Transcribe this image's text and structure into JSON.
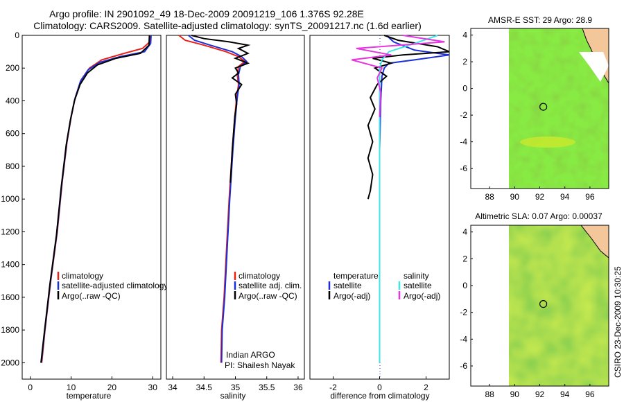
{
  "header": {
    "line1": "Argo profile: IN 2901092_49 18-Dec-2009 20091219_106 1.376S 92.28E",
    "line2": "Climatology: CARS2009. Satellite-adjusted climatology: synTS_20091217.nc (1.6d earlier)"
  },
  "footer_stamp": "CSIRO 23-Dec-2009 10:30:25",
  "colors": {
    "climatology": "#e8211b",
    "satellite": "#1c2fd6",
    "argo": "#000000",
    "sal_sat": "#3ee6e6",
    "sal_argo": "#e636e0",
    "map_green": "#6cd42a",
    "coast": "#f4c79a"
  },
  "chart_data": [
    {
      "id": "temperature",
      "type": "line",
      "xlabel": "temperature",
      "ylabel": "",
      "xlim": [
        -2,
        32
      ],
      "ylim": [
        2100,
        0
      ],
      "xticks": [
        0,
        10,
        20,
        30
      ],
      "yticks": [
        0,
        200,
        400,
        600,
        800,
        1000,
        1200,
        1400,
        1600,
        1800,
        2000
      ],
      "legend": [
        "climatology",
        "satellite-adjusted climatology",
        "Argo(..raw -QC)"
      ],
      "series": [
        {
          "name": "climatology",
          "color": "red",
          "points": [
            [
              29.4,
              0
            ],
            [
              29.3,
              40
            ],
            [
              27.5,
              80
            ],
            [
              23,
              110
            ],
            [
              17.5,
              150
            ],
            [
              14.5,
              200
            ],
            [
              12.5,
              270
            ],
            [
              11,
              380
            ],
            [
              10,
              500
            ],
            [
              9,
              650
            ],
            [
              7.8,
              900
            ],
            [
              6.6,
              1200
            ],
            [
              5,
              1500
            ],
            [
              3.6,
              1800
            ],
            [
              2.8,
              2000
            ]
          ]
        },
        {
          "name": "satellite-adjusted climatology",
          "color": "blue",
          "points": [
            [
              29.6,
              0
            ],
            [
              29.5,
              50
            ],
            [
              28,
              100
            ],
            [
              22,
              130
            ],
            [
              17,
              165
            ],
            [
              14.2,
              210
            ],
            [
              12.3,
              280
            ],
            [
              10.9,
              390
            ],
            [
              9.9,
              510
            ],
            [
              8.9,
              660
            ],
            [
              7.7,
              910
            ],
            [
              6.5,
              1210
            ],
            [
              4.9,
              1510
            ],
            [
              3.5,
              1810
            ],
            [
              2.7,
              2000
            ]
          ]
        },
        {
          "name": "Argo(..raw -QC)",
          "color": "black",
          "points": [
            [
              29.2,
              0
            ],
            [
              29.1,
              60
            ],
            [
              27,
              110
            ],
            [
              21,
              140
            ],
            [
              16.5,
              180
            ],
            [
              14,
              230
            ],
            [
              12.2,
              300
            ],
            [
              10.8,
              400
            ],
            [
              9.8,
              520
            ],
            [
              8.8,
              670
            ],
            [
              7.6,
              920
            ],
            [
              6.4,
              1220
            ],
            [
              4.8,
              1520
            ],
            [
              3.4,
              1820
            ],
            [
              2.6,
              2000
            ]
          ]
        }
      ]
    },
    {
      "id": "salinity",
      "type": "line",
      "xlabel": "salinity",
      "ylabel": "",
      "xlim": [
        33.9,
        36.1
      ],
      "ylim": [
        2100,
        0
      ],
      "xticks": [
        34,
        34.5,
        35,
        35.5,
        36
      ],
      "legend": [
        "climatology",
        "satellite adj. clim.",
        "Argo(..raw -QC)"
      ],
      "annotation": [
        "Indian ARGO",
        "PI: Shailesh Nayak"
      ],
      "series": [
        {
          "name": "climatology",
          "color": "red",
          "points": [
            [
              34.1,
              0
            ],
            [
              34.2,
              30
            ],
            [
              34.5,
              60
            ],
            [
              34.85,
              100
            ],
            [
              35.05,
              130
            ],
            [
              35.15,
              160
            ],
            [
              35.05,
              190
            ],
            [
              35.03,
              240
            ],
            [
              35.05,
              300
            ],
            [
              35.02,
              380
            ],
            [
              34.99,
              500
            ],
            [
              34.95,
              700
            ],
            [
              34.9,
              1000
            ],
            [
              34.86,
              1300
            ],
            [
              34.82,
              1600
            ],
            [
              34.78,
              1800
            ],
            [
              34.77,
              2000
            ]
          ]
        },
        {
          "name": "satellite adj. clim.",
          "color": "blue",
          "points": [
            [
              34.25,
              0
            ],
            [
              34.35,
              30
            ],
            [
              34.6,
              60
            ],
            [
              34.95,
              100
            ],
            [
              35.1,
              130
            ],
            [
              35.18,
              160
            ],
            [
              35.08,
              190
            ],
            [
              35.05,
              240
            ],
            [
              35.06,
              300
            ],
            [
              35.03,
              380
            ],
            [
              35.0,
              500
            ],
            [
              34.96,
              700
            ],
            [
              34.91,
              1000
            ],
            [
              34.87,
              1300
            ],
            [
              34.83,
              1600
            ],
            [
              34.79,
              1800
            ],
            [
              34.78,
              2000
            ]
          ]
        },
        {
          "name": "Argo(..raw -QC)",
          "color": "black",
          "points": [
            [
              34.3,
              0
            ],
            [
              34.5,
              20
            ],
            [
              34.9,
              40
            ],
            [
              35.2,
              60
            ],
            [
              35.05,
              80
            ],
            [
              35.2,
              110
            ],
            [
              35.0,
              140
            ],
            [
              35.2,
              170
            ],
            [
              35.0,
              200
            ],
            [
              35.05,
              230
            ],
            [
              34.95,
              260
            ],
            [
              35.1,
              300
            ],
            [
              35.0,
              360
            ],
            [
              35.02,
              420
            ],
            [
              34.99,
              500
            ],
            [
              34.96,
              650
            ],
            [
              34.95,
              700
            ],
            [
              34.92,
              900
            ]
          ]
        }
      ]
    },
    {
      "id": "difference",
      "type": "line",
      "xlabel": "difference from climatology",
      "ylabel": "",
      "xlim": [
        -3,
        3
      ],
      "ylim": [
        2100,
        0
      ],
      "xticks": [
        -2,
        0,
        2
      ],
      "legend_temp_title": "temperature",
      "legend_sal_title": "salinity",
      "legend_temp": [
        "satellite",
        "Argo(-adj)"
      ],
      "legend_sal": [
        "satellite",
        "Argo(-adj)"
      ],
      "series": [
        {
          "name": "temperature satellite",
          "color": "blue",
          "points": [
            [
              0.3,
              0
            ],
            [
              0.6,
              40
            ],
            [
              1.5,
              90
            ],
            [
              3.0,
              120
            ],
            [
              1.5,
              150
            ],
            [
              0.4,
              170
            ],
            [
              0.2,
              200
            ],
            [
              0.1,
              250
            ],
            [
              0.05,
              400
            ],
            [
              0,
              700
            ],
            [
              0,
              1000
            ],
            [
              0,
              1400
            ],
            [
              0,
              2000
            ]
          ]
        },
        {
          "name": "temperature Argo(-adj)",
          "color": "black",
          "points": [
            [
              0.2,
              0
            ],
            [
              0.8,
              30
            ],
            [
              2.5,
              70
            ],
            [
              3.0,
              100
            ],
            [
              1.0,
              120
            ],
            [
              -0.3,
              140
            ],
            [
              0.5,
              170
            ],
            [
              -0.2,
              200
            ],
            [
              0.3,
              250
            ],
            [
              -0.1,
              300
            ],
            [
              -0.4,
              380
            ],
            [
              -0.2,
              450
            ],
            [
              -0.5,
              550
            ],
            [
              -0.3,
              650
            ],
            [
              -0.5,
              750
            ],
            [
              -0.3,
              850
            ],
            [
              -0.4,
              950
            ],
            [
              -0.5,
              1000
            ]
          ]
        },
        {
          "name": "salinity satellite",
          "color": "cyan",
          "points": [
            [
              2.5,
              0
            ],
            [
              1.5,
              50
            ],
            [
              0.4,
              100
            ],
            [
              0.1,
              150
            ],
            [
              0,
              200
            ],
            [
              0,
              400
            ],
            [
              0,
              800
            ],
            [
              0,
              1200
            ],
            [
              0,
              2000
            ]
          ]
        },
        {
          "name": "salinity Argo(-adj)",
          "color": "magenta",
          "points": [
            [
              1.0,
              0
            ],
            [
              2.8,
              40
            ],
            [
              -1.0,
              80
            ],
            [
              0.5,
              120
            ],
            [
              -1.2,
              150
            ],
            [
              0.1,
              200
            ],
            [
              -0.1,
              260
            ],
            [
              0.05,
              350
            ],
            [
              0,
              500
            ]
          ]
        }
      ]
    },
    {
      "id": "sst-map",
      "type": "heatmap",
      "title": "AMSR-E SST: 29 Argo: 28.9",
      "xlim": [
        86.5,
        97.5
      ],
      "ylim": [
        -7.5,
        4.5
      ],
      "xticks": [
        88,
        90,
        92,
        94,
        96
      ],
      "yticks": [
        4,
        2,
        0,
        -2,
        -4,
        -6
      ],
      "data_west_edge": 90,
      "argo_position": [
        92.28,
        -1.376
      ]
    },
    {
      "id": "sla-map",
      "type": "heatmap",
      "title": "Altimetric SLA: 0.07 Argo: 0.00037",
      "xlim": [
        86.5,
        97.5
      ],
      "ylim": [
        -7.5,
        4.5
      ],
      "xticks": [
        88,
        90,
        92,
        94,
        96
      ],
      "yticks": [
        4,
        2,
        0,
        -2,
        -4,
        -6
      ],
      "data_west_edge": 90,
      "argo_position": [
        92.28,
        -1.376
      ]
    }
  ]
}
